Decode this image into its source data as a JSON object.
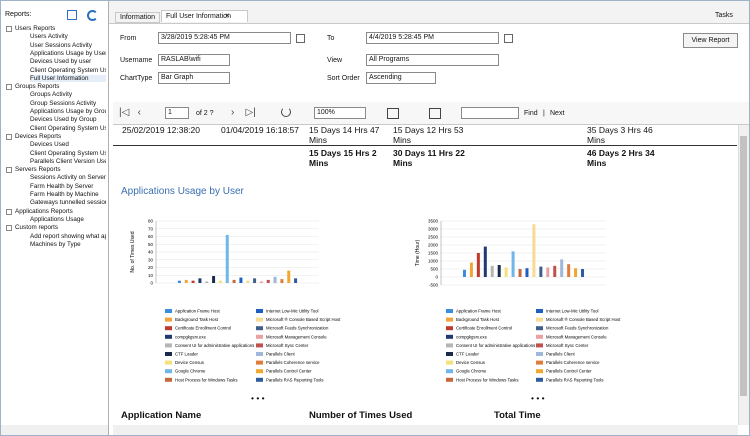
{
  "sidebar": {
    "header": "Reports:",
    "tree": [
      {
        "label": "Users Reports",
        "items": [
          "Users Activity",
          "User Sessions Activity",
          "Applications Usage by User",
          "Devices Used by user",
          "Client Operating System Use",
          "Full User Information"
        ]
      },
      {
        "label": "Groups Reports",
        "items": [
          "Groups Activity",
          "Group Sessions Activity",
          "Applications Usage by Group",
          "Devices Used by Group",
          "Client Operating System Use"
        ]
      },
      {
        "label": "Devices Reports",
        "items": [
          "Devices Used",
          "Client Operating System Use",
          "Parallels Client Version Used"
        ]
      },
      {
        "label": "Servers Reports",
        "items": [
          "Sessions Activity on Server",
          "Farm Health by Server",
          "Farm Health by Machine",
          "Gateways tunnelled session"
        ]
      },
      {
        "label": "Applications Reports",
        "items": [
          "Applications Usage"
        ]
      },
      {
        "label": "Custom reports",
        "items": [
          "Add report showing what ap",
          "Machines by Type"
        ]
      }
    ]
  },
  "tabs": [
    "Information",
    "Full User Information"
  ],
  "tasks": "Tasks",
  "params": {
    "from_label": "From",
    "from": "3/28/2019 5:28:45 PM",
    "to_label": "To",
    "to": "4/4/2019 5:28:45 PM",
    "username_label": "Username",
    "username": "RASLAB\\wifi",
    "view_label": "View",
    "view": "All Programs",
    "charttype_label": "ChartType",
    "charttype": "Bar Graph",
    "sort_label": "Sort Order",
    "sort": "Ascending",
    "button": "View Report"
  },
  "toolbar": {
    "page": "1",
    "of": "of 2 ?",
    "zoom": "100%",
    "find": "Find",
    "separator": "|",
    "next": "Next"
  },
  "report": {
    "row": [
      "25/02/2019 12:38:20",
      "01/04/2019 16:18:57",
      "15 Days 14 Hrs 47 Mins",
      "15 Days 12 Hrs 53 Mins",
      "35 Days 3 Hrs 46 Mins"
    ],
    "totals": [
      "15 Days 15 Hrs 2 Mins",
      "30 Days 11 Hrs 22 Mins",
      "46 Days 2 Hrs 34 Mins"
    ],
    "section_title": "Applications Usage by User",
    "legend_more": [
      "• • •",
      "• • •"
    ],
    "columns": [
      "Application Name",
      "Number of Times Used",
      "Total Time"
    ]
  },
  "chart_data": [
    {
      "type": "bar",
      "y_label": "No. of Times Used",
      "ylim": [
        0,
        80
      ],
      "yticks": [
        0,
        10,
        20,
        30,
        40,
        50,
        60,
        70,
        80
      ],
      "grid": true,
      "series": [
        {
          "name": "Application Frame Host",
          "color": "#3b8ede",
          "values": [
            3
          ]
        },
        {
          "name": "Background Task Host",
          "color": "#f2a43a",
          "values": [
            4
          ]
        },
        {
          "name": "Certificate Enrollment Control",
          "color": "#c0392b",
          "values": [
            3
          ]
        },
        {
          "name": "compgkgsrv.exe",
          "color": "#1f3a6e",
          "values": [
            6
          ]
        },
        {
          "name": "Consent UI for administrative applications",
          "color": "#b5b5b5",
          "values": [
            2
          ]
        },
        {
          "name": "CTF Loader",
          "color": "#1b2a4a",
          "values": [
            9
          ]
        },
        {
          "name": "Device Census",
          "color": "#f5e07a",
          "values": [
            3
          ]
        },
        {
          "name": "Google Chrome",
          "color": "#6fb7e8",
          "values": [
            62
          ]
        },
        {
          "name": "Host Process for Windows Tasks",
          "color": "#c8683a",
          "values": [
            4
          ]
        },
        {
          "name": "Internet Low-Mic Utility Tool",
          "color": "#1f5fbf",
          "values": [
            7
          ]
        },
        {
          "name": "Microsoft ® Console Based Script Host",
          "color": "#f7dc8f",
          "values": [
            3
          ]
        },
        {
          "name": "Microsoft Feeds Synchronization",
          "color": "#3f5f8a",
          "values": [
            6
          ]
        },
        {
          "name": "Microsoft Management Console",
          "color": "#e8a0a0",
          "values": [
            2
          ]
        },
        {
          "name": "Microsoft Sync Center",
          "color": "#c0504d",
          "values": [
            4
          ]
        },
        {
          "name": "Parallels Client",
          "color": "#9fb7d8",
          "values": [
            8
          ]
        },
        {
          "name": "Parallels Coherence service",
          "color": "#e07b39",
          "values": [
            5
          ]
        },
        {
          "name": "Parallels Control Center",
          "color": "#f0a830",
          "values": [
            16
          ]
        },
        {
          "name": "Parallels RAS Reporting Tools",
          "color": "#2e5c9e",
          "values": [
            6
          ]
        }
      ]
    },
    {
      "type": "bar",
      "y_label": "Time (Hour)",
      "ylim": [
        -500,
        3500
      ],
      "yticks": [
        -500,
        0,
        500,
        1000,
        1500,
        2000,
        2500,
        3000,
        3500
      ],
      "grid": true,
      "series": [
        {
          "name": "Application Frame Host",
          "color": "#3b8ede",
          "values": [
            450
          ]
        },
        {
          "name": "Background Task Host",
          "color": "#f2a43a",
          "values": [
            900
          ]
        },
        {
          "name": "Certificate Enrollment Control",
          "color": "#c0392b",
          "values": [
            1500
          ]
        },
        {
          "name": "compgkgsrv.exe",
          "color": "#1f3a6e",
          "values": [
            1900
          ]
        },
        {
          "name": "Consent UI for administrative applications",
          "color": "#b5b5b5",
          "values": [
            700
          ]
        },
        {
          "name": "CTF Loader",
          "color": "#1b2a4a",
          "values": [
            750
          ]
        },
        {
          "name": "Device Census",
          "color": "#f5e07a",
          "values": [
            600
          ]
        },
        {
          "name": "Google Chrome",
          "color": "#6fb7e8",
          "values": [
            1600
          ]
        },
        {
          "name": "Host Process for Windows Tasks",
          "color": "#c8683a",
          "values": [
            500
          ]
        },
        {
          "name": "Internet Low-Mic Utility Tool",
          "color": "#1f5fbf",
          "values": [
            550
          ]
        },
        {
          "name": "Microsoft ® Console Based Script Host",
          "color": "#f7dc8f",
          "values": [
            3300
          ]
        },
        {
          "name": "Microsoft Feeds Synchronization",
          "color": "#3f5f8a",
          "values": [
            650
          ]
        },
        {
          "name": "Microsoft Management Console",
          "color": "#e8a0a0",
          "values": [
            600
          ]
        },
        {
          "name": "Microsoft Sync Center",
          "color": "#c0504d",
          "values": [
            700
          ]
        },
        {
          "name": "Parallels Client",
          "color": "#9fb7d8",
          "values": [
            1100
          ]
        },
        {
          "name": "Parallels Coherence service",
          "color": "#e07b39",
          "values": [
            800
          ]
        },
        {
          "name": "Parallels Control Center",
          "color": "#f0a830",
          "values": [
            550
          ]
        },
        {
          "name": "Parallels RAS Reporting Tools",
          "color": "#2e5c9e",
          "values": [
            500
          ]
        }
      ]
    }
  ]
}
